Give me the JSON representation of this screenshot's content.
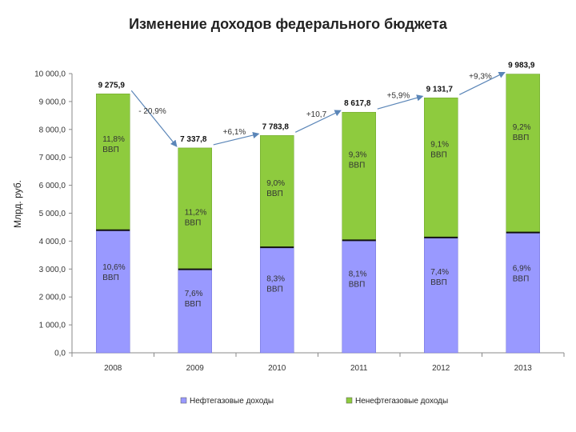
{
  "chart_data": {
    "type": "bar",
    "stacked": true,
    "title": "Изменение доходов федерального бюджета",
    "ylabel": "Млрд. руб.",
    "ylim": [
      0,
      10000
    ],
    "yticks": [
      "0,0",
      "1 000,0",
      "2 000,0",
      "3 000,0",
      "4 000,0",
      "5 000,0",
      "6 000,0",
      "7 000,0",
      "8 000,0",
      "9 000,0",
      "10 000,0"
    ],
    "categories": [
      "2008",
      "2009",
      "2010",
      "2011",
      "2012",
      "2013"
    ],
    "series": [
      {
        "name": "Нефтегазовые доходы",
        "color": "#9999ff",
        "values": [
          4390,
          2990,
          3780,
          4030,
          4130,
          4310
        ]
      },
      {
        "name": "Ненефтегазовые доходы",
        "color": "#8ecb3e",
        "values": [
          4886,
          4348,
          4004,
          4588,
          5002,
          5674
        ]
      }
    ],
    "totals": [
      "9 275,9",
      "7 337,8",
      "7 783,8",
      "8 617,8",
      "9 131,7",
      "9 983,9"
    ],
    "total_values": [
      9276,
      7338,
      7784,
      8618,
      9132,
      9984
    ],
    "changes": [
      "- 20,9%",
      "+6,1%",
      "+10,7",
      "+5,9%",
      "+9,3%"
    ],
    "segment_labels_bottom": [
      [
        "10,6%",
        "ВВП"
      ],
      [
        "7,6%",
        "ВВП"
      ],
      [
        "8,3%",
        "ВВП"
      ],
      [
        "8,1%",
        "ВВП"
      ],
      [
        "7,4%",
        "ВВП"
      ],
      [
        "6,9%",
        "ВВП"
      ]
    ],
    "segment_labels_top": [
      [
        "11,8%",
        "ВВП"
      ],
      [
        "11,2%",
        "ВВП"
      ],
      [
        "9,0%",
        "ВВП"
      ],
      [
        "9,3%",
        "ВВП"
      ],
      [
        "9,1%",
        "ВВП"
      ],
      [
        "9,2%",
        "ВВП"
      ]
    ],
    "legend": [
      "Нефтегазовые доходы",
      "Ненефтегазовые доходы"
    ]
  }
}
